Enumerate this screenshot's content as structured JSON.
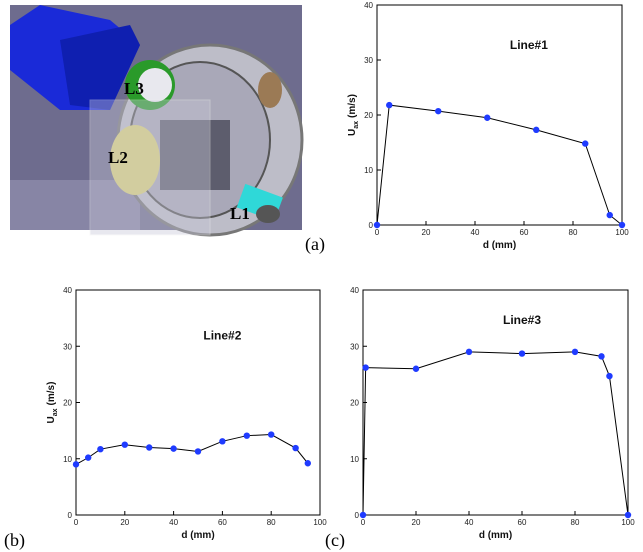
{
  "panel_labels": [
    "(a)",
    "(b)",
    "(c)"
  ],
  "render_labels": [
    "L3",
    "L2",
    "L1"
  ],
  "chart_data": [
    {
      "type": "line",
      "annotation": "Line#1",
      "xlabel": "d (mm)",
      "ylabel": "U",
      "ylabel_sub": "ax",
      "ylabel_unit": "(m/s)",
      "x": [
        0,
        5,
        25,
        45,
        65,
        85,
        95,
        100
      ],
      "series": [
        {
          "color": "#1f3bff",
          "values": [
            0,
            21.8,
            20.7,
            19.5,
            17.3,
            14.8,
            1.8,
            0
          ]
        }
      ],
      "xlim": [
        0,
        100
      ],
      "xticks": [
        0,
        20,
        40,
        60,
        80,
        100
      ],
      "ylim": [
        0,
        40
      ],
      "yticks": [
        0,
        10,
        20,
        30,
        40
      ]
    },
    {
      "type": "line",
      "annotation": "Line#2",
      "xlabel": "d (mm)",
      "ylabel": "U",
      "ylabel_sub": "ax",
      "ylabel_unit": "(m/s)",
      "x": [
        0,
        5,
        10,
        20,
        30,
        40,
        50,
        60,
        70,
        80,
        90,
        95
      ],
      "series": [
        {
          "color": "#1f3bff",
          "values": [
            9,
            10.2,
            11.7,
            12.5,
            12,
            11.8,
            11.3,
            13.1,
            14.1,
            14.3,
            11.9,
            9.2
          ]
        }
      ],
      "xlim": [
        0,
        100
      ],
      "xticks": [
        0,
        20,
        40,
        60,
        80,
        100
      ],
      "ylim": [
        0,
        40
      ],
      "yticks": [
        0,
        10,
        20,
        30,
        40
      ]
    },
    {
      "type": "line",
      "annotation": "Line#3",
      "xlabel": "d (mm)",
      "x": [
        0,
        1,
        20,
        40,
        60,
        80,
        90,
        93,
        100
      ],
      "series": [
        {
          "color": "#1f3bff",
          "values": [
            0,
            26.2,
            26,
            29,
            28.7,
            29,
            28.2,
            24.7,
            0
          ]
        }
      ],
      "xlim": [
        0,
        100
      ],
      "xticks": [
        0,
        20,
        40,
        60,
        80,
        100
      ],
      "ylim": [
        0,
        40
      ],
      "yticks": [
        0,
        10,
        20,
        30,
        40
      ]
    }
  ]
}
